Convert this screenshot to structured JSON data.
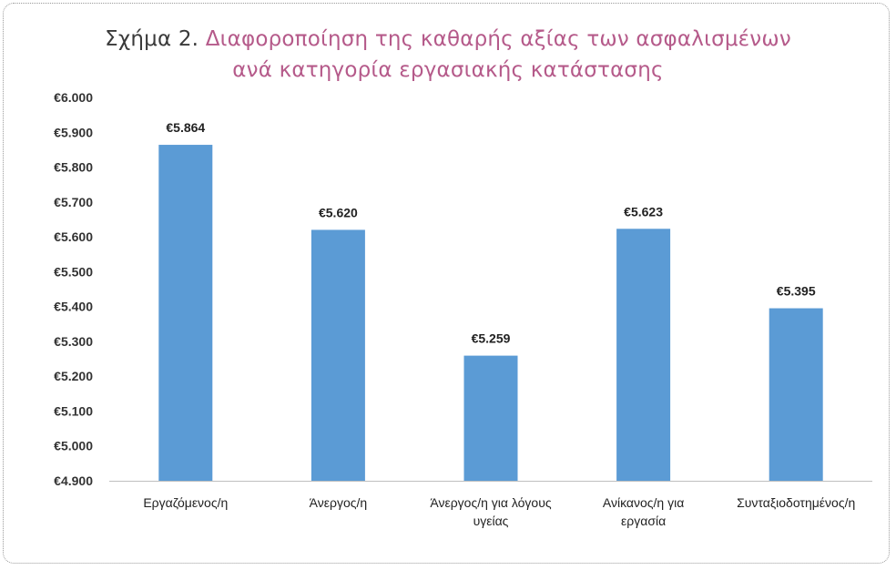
{
  "chart_data": {
    "type": "bar",
    "title_prefix": "Σχήμα 2.",
    "title_line1": "Διαφοροποίηση της καθαρής αξίας των  ασφαλισμένων",
    "title_line2": "ανά κατηγορία εργασιακής κατάστασης",
    "categories": [
      [
        "Εργαζόμενος/η"
      ],
      [
        "Άνεργος/η"
      ],
      [
        "Άνεργος/η για λόγους",
        "υγείας"
      ],
      [
        "Ανίκανος/η για",
        "εργασία"
      ],
      [
        "Συνταξιοδοτημένος/η"
      ]
    ],
    "values": [
      5864,
      5620,
      5259,
      5623,
      5395
    ],
    "data_labels": [
      "€5.864",
      "€5.620",
      "€5.259",
      "€5.623",
      "€5.395"
    ],
    "ylim": [
      4900,
      6000
    ],
    "yticks": [
      6000,
      5900,
      5800,
      5700,
      5600,
      5500,
      5400,
      5300,
      5200,
      5100,
      5000,
      4900
    ],
    "ytick_labels": [
      "€6.000",
      "€5.900",
      "€5.800",
      "€5.700",
      "€5.600",
      "€5.500",
      "€5.400",
      "€5.300",
      "€5.200",
      "€5.100",
      "€5.000",
      "€4.900"
    ],
    "bar_color": "#5b9bd5",
    "grid": false,
    "legend": "none"
  }
}
